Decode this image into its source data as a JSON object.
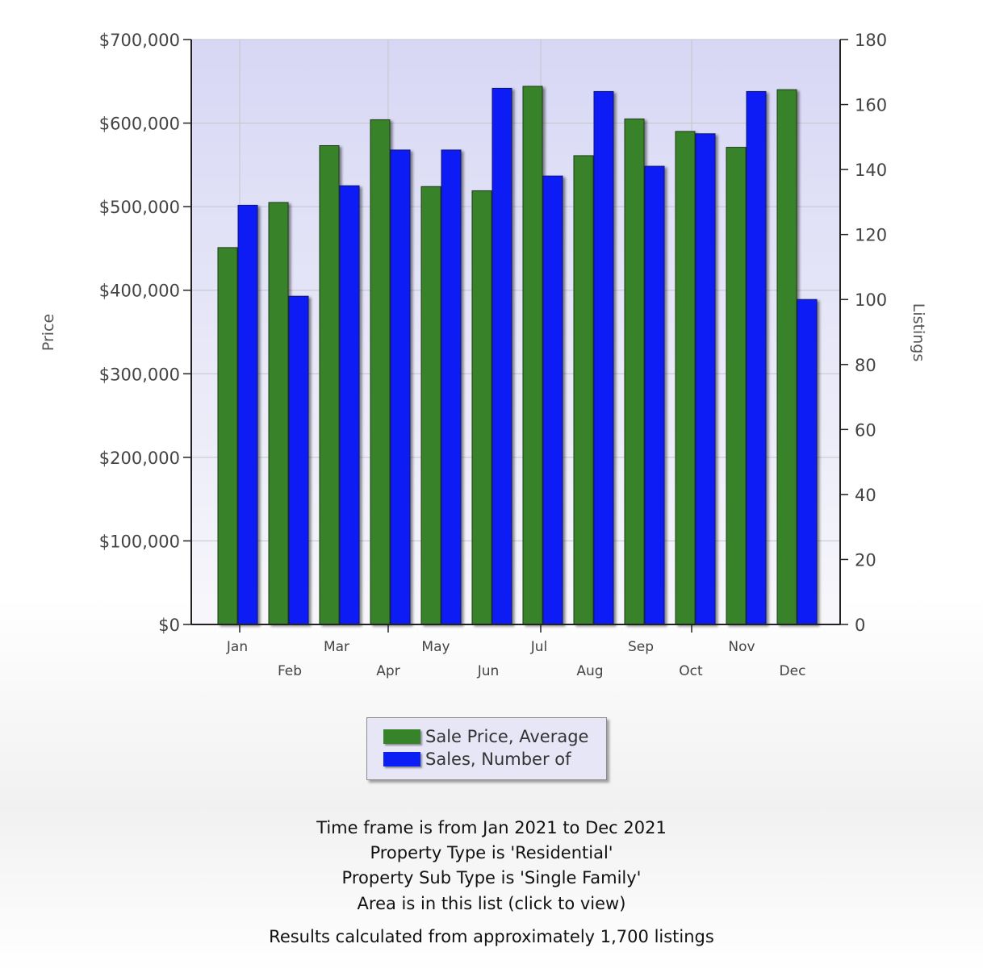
{
  "chart_data": {
    "type": "bar",
    "categories": [
      "Jan",
      "Feb",
      "Mar",
      "Apr",
      "May",
      "Jun",
      "Jul",
      "Aug",
      "Sep",
      "Oct",
      "Nov",
      "Dec"
    ],
    "series": [
      {
        "name": "Sale Price, Average",
        "axis": "left",
        "color": "#37832a",
        "values": [
          451000,
          505000,
          573000,
          604000,
          524000,
          519000,
          644000,
          561000,
          605000,
          590000,
          571000,
          640000
        ]
      },
      {
        "name": "Sales, Number of",
        "axis": "right",
        "color": "#0b1ff5",
        "values": [
          129,
          101,
          135,
          146,
          146,
          165,
          138,
          164,
          141,
          151,
          164,
          100
        ]
      }
    ],
    "ylabel": "Price",
    "y2label": "Listings",
    "ylim": [
      0,
      700000
    ],
    "y2lim": [
      0,
      180
    ],
    "yticks": [
      "$0",
      "$100,000",
      "$200,000",
      "$300,000",
      "$400,000",
      "$500,000",
      "$600,000",
      "$700,000"
    ],
    "y2ticks": [
      "0",
      "20",
      "40",
      "60",
      "80",
      "100",
      "120",
      "140",
      "160",
      "180"
    ],
    "grid": true,
    "legend_position": "bottom"
  },
  "legend": {
    "items": [
      "Sale Price, Average",
      "Sales, Number of"
    ]
  },
  "captions": {
    "timeframe": "Time frame is from Jan 2021 to Dec 2021",
    "property_type": "Property Type is 'Residential'",
    "property_sub_type": "Property Sub Type is 'Single Family'",
    "area": "Area is in this list (click to view)",
    "results": "Results calculated from approximately 1,700 listings"
  },
  "colors": {
    "plot_background": "#eaeaf8",
    "price_bar": "#37832a",
    "sales_bar": "#0b1ff5"
  }
}
